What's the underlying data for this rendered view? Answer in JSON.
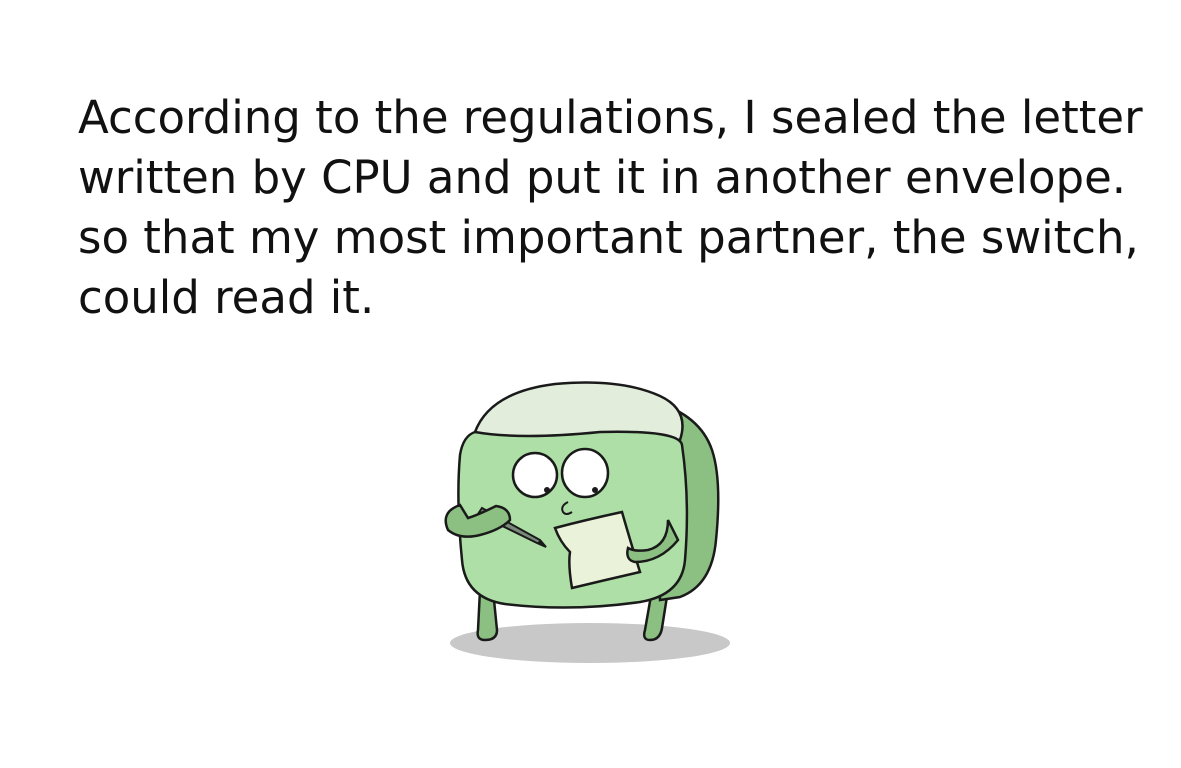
{
  "caption": {
    "lines": [
      "According to the regulations, I sealed the letter",
      "written by CPU and put it in another envelope.",
      "so that my most important partner, the switch,",
      "could read it."
    ]
  },
  "illustration": {
    "character": "green-cube-character",
    "held_items": [
      "pen-icon",
      "letter-paper-icon"
    ],
    "colors": {
      "body_front": "#ADDFA6",
      "body_side": "#8CBF82",
      "body_top": "#E2EEDB",
      "paper": "#EAF3D9",
      "outline": "#1a1a1a",
      "shadow": "#C8C8C8"
    }
  }
}
